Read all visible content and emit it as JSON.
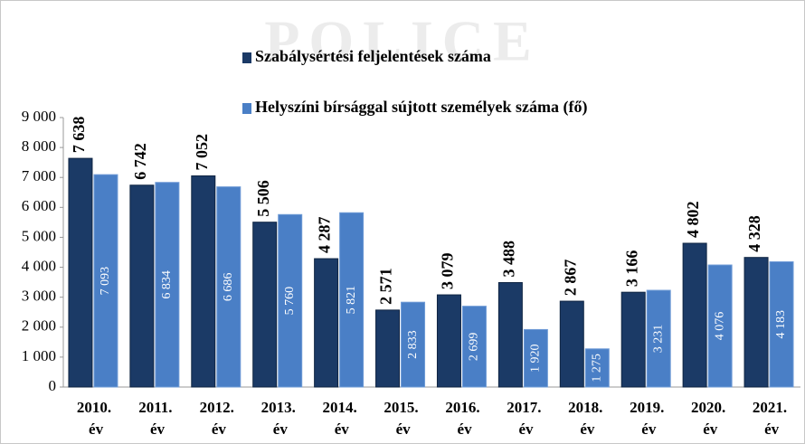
{
  "chart_data": {
    "type": "bar",
    "watermark": "POLICE",
    "categories": [
      "2010. év",
      "2011. év",
      "2012. év",
      "2013. év",
      "2014. év",
      "2015. év",
      "2016. év",
      "2017. év",
      "2018. év",
      "2019. év",
      "2020. év",
      "2021. év"
    ],
    "series": [
      {
        "name": "Szabálysértési feljelentések száma",
        "color": "#1b3a66",
        "values": [
          7638,
          6742,
          7052,
          5506,
          4287,
          2571,
          3079,
          3488,
          2867,
          3166,
          4802,
          4328
        ],
        "value_labels": [
          "7 638",
          "6 742",
          "7 052",
          "5 506",
          "4 287",
          "2 571",
          "3 079",
          "3 488",
          "2 867",
          "3 166",
          "4 802",
          "4 328"
        ]
      },
      {
        "name": "Helyszíni bírsággal sújtott személyek száma (fő)",
        "color": "#4a7fc6",
        "values": [
          7093,
          6834,
          6686,
          5760,
          5821,
          2833,
          2699,
          1920,
          1275,
          3231,
          4076,
          4183
        ],
        "value_labels": [
          "7 093",
          "6 834",
          "6 686",
          "5 760",
          "5 821",
          "2 833",
          "2 699",
          "1 920",
          "1 275",
          "3 231",
          "4 076",
          "4 183"
        ]
      }
    ],
    "ylim": [
      0,
      9000
    ],
    "yticks": [
      0,
      {
        "value": 1000,
        "label": "1 000"
      },
      {
        "value": 2000,
        "label": "2 000"
      },
      {
        "value": 3000,
        "label": "3 000"
      },
      {
        "value": 4000,
        "label": "4 000"
      },
      {
        "value": 5000,
        "label": "5 000"
      },
      {
        "value": 6000,
        "label": "6 000"
      },
      {
        "value": 7000,
        "label": "7 000"
      },
      {
        "value": 8000,
        "label": "8 000"
      },
      {
        "value": 9000,
        "label": "9 000"
      }
    ],
    "grid": false
  }
}
